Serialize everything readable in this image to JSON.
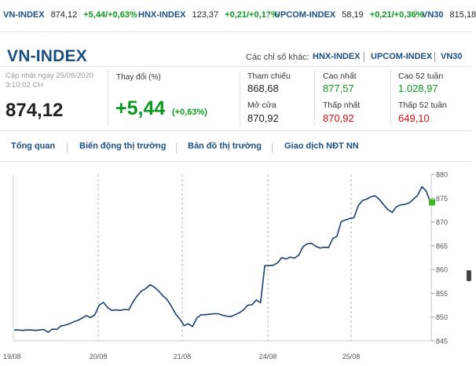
{
  "ticker": [
    {
      "name": "VN-INDEX",
      "value": "874,12",
      "change": "+5,44/+0,63%"
    },
    {
      "name": "HNX-INDEX",
      "value": "123,37",
      "change": "+0,21/+0,17%"
    },
    {
      "name": "UPCOM-INDEX",
      "value": "58,19",
      "change": "+0,21/+0,36%"
    },
    {
      "name": "VN30",
      "value": "815,18",
      "change": ""
    }
  ],
  "header": {
    "title": "VN-INDEX",
    "other_label": "Các chỉ số khác:",
    "other_links": [
      "HNX-INDEX",
      "UPCOM-INDEX",
      "VN30"
    ]
  },
  "summary": {
    "updated": "Cập nhật ngày 25/08/2020 3:10:02 CH",
    "price": "874,12",
    "change_label": "Thay đổi (%)",
    "change_value": "+5,44",
    "change_percent": "(+0,63%)"
  },
  "stats": {
    "reference_label": "Tham chiếu",
    "reference_value": "868,68",
    "open_label": "Mở cửa",
    "open_value": "870,92",
    "high_label": "Cao nhất",
    "high_value": "877,57",
    "low_label": "Thấp nhất",
    "low_value": "870,92",
    "high52_label": "Cao 52 tuần",
    "high52_value": "1.028,97",
    "low52_label": "Thấp 52 tuần",
    "low52_value": "649,10"
  },
  "tabs": [
    "Tổng quan",
    "Biến động thị trường",
    "Bản đồ thị trường",
    "Giao dịch NĐT NN"
  ],
  "colors": {
    "accent": "#1b4f80",
    "up": "#0a9a1e",
    "down": "#d40f16",
    "line": "#1a3e6e"
  },
  "chart_data": {
    "type": "line",
    "x_ticks": [
      "19/08",
      "20/08",
      "21/08",
      "24/08",
      "25/08"
    ],
    "y_ticks": [
      845,
      850,
      855,
      860,
      865,
      870,
      875,
      880
    ],
    "ylim": [
      845,
      880
    ],
    "last_value": 874.12,
    "series": [
      {
        "values": [
          847.3,
          847.3,
          847.2,
          847.3,
          847.3,
          847.2,
          847.3,
          847.4,
          846.8,
          847.5,
          847.4,
          848.1,
          848.3,
          848.6,
          849.0,
          849.3,
          849.8,
          850.3,
          849.9,
          850.5,
          852.5,
          853.1,
          852.0,
          851.4,
          851.5,
          851.4,
          851.6,
          851.5,
          853.2,
          854.5,
          855.5,
          856.0,
          856.8,
          856.3,
          855.5,
          854.5,
          853.7,
          852.3,
          850.7,
          849.6,
          848.2,
          848.6,
          848.0,
          849.8,
          850.5,
          850.5,
          850.6,
          850.7,
          850.7,
          850.4,
          850.2,
          850.1,
          850.5,
          850.9,
          851.5,
          852.5,
          852.6,
          853.6,
          853.0,
          860.8,
          860.8,
          860.9,
          861.4,
          862.5,
          862.2,
          862.6,
          862.4,
          863.0,
          864.8,
          865.4,
          865.5,
          864.9,
          864.5,
          864.7,
          864.6,
          866.5,
          867.0,
          870.1,
          870.4,
          870.7,
          870.9,
          873.4,
          874.5,
          874.8,
          875.3,
          875.5,
          874.7,
          873.6,
          872.6,
          872.0,
          873.2,
          873.6,
          873.7,
          874.0,
          874.8,
          875.6,
          877.4,
          876.5,
          874.12
        ]
      }
    ]
  }
}
